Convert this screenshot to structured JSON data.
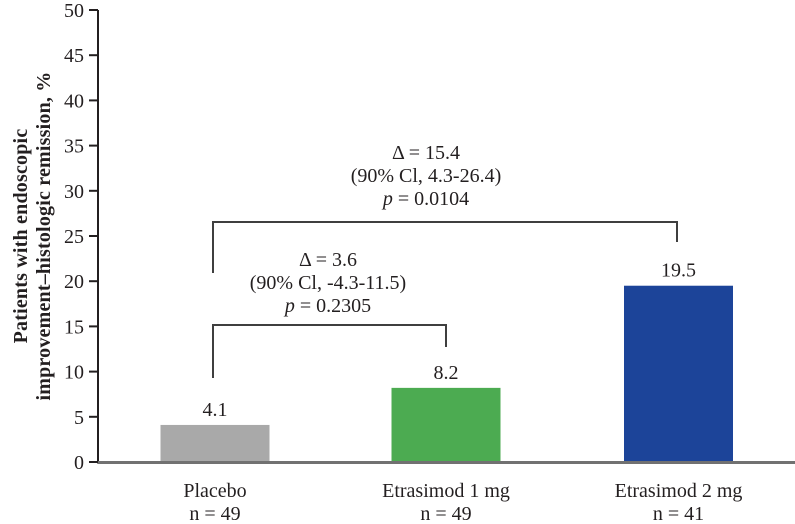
{
  "chart": {
    "y_title_line1": "Patients with endoscopic",
    "y_title_line2": "improvement–histologic remission, %"
  },
  "chart_data": {
    "type": "bar",
    "ylabel": "Patients with endoscopic improvement–histologic remission, %",
    "ylim": [
      0,
      50
    ],
    "ytick_step": 5,
    "grid": false,
    "legend": false,
    "categories": [
      "Placebo",
      "Etrasimod 1 mg",
      "Etrasimod 2 mg"
    ],
    "n_labels": [
      "n = 49",
      "n = 49",
      "n = 41"
    ],
    "values": [
      4.1,
      8.2,
      19.5
    ],
    "value_labels": [
      "4.1",
      "8.2",
      "19.5"
    ],
    "bar_colors": [
      "#a9a9a9",
      "#4cab51",
      "#1c4499"
    ],
    "colors": {
      "axis": "#231f20",
      "baseline": "#717171",
      "bracket": "#3f3f3f",
      "text": "#231f20"
    },
    "comparisons": [
      {
        "between": [
          "Placebo",
          "Etrasimod 1 mg"
        ],
        "lines": [
          "Δ = 3.6",
          "(90% Cl, -4.3-11.5)",
          "p = 0.2305"
        ]
      },
      {
        "between": [
          "Placebo",
          "Etrasimod 2 mg"
        ],
        "lines": [
          "Δ = 15.4",
          "(90% Cl, 4.3-26.4)",
          "p = 0.0104"
        ]
      }
    ]
  }
}
